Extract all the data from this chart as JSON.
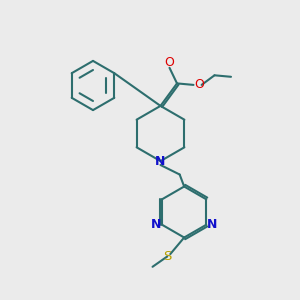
{
  "bg_color": "#ebebeb",
  "bond_color": "#2d6e6e",
  "N_color": "#1010cc",
  "O_color": "#dd0000",
  "S_color": "#b8a000",
  "line_width": 1.5,
  "figsize": [
    3.0,
    3.0
  ],
  "dpi": 100,
  "xlim": [
    0,
    10
  ],
  "ylim": [
    0,
    10
  ]
}
